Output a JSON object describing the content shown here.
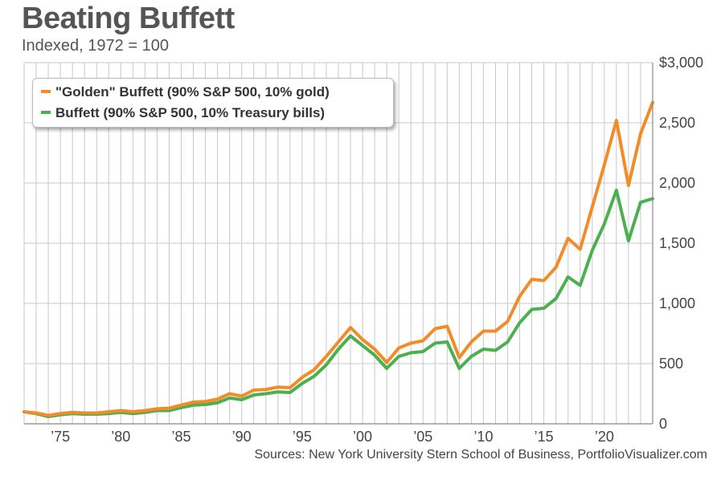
{
  "title": "Beating Buffett",
  "subtitle": "Indexed, 1972 = 100",
  "source": "Sources: New York University Stern School of Business, PortfolioVisualizer.com",
  "colors": {
    "golden": "#f28c28",
    "buffett": "#4caf50",
    "grid": "#c8c8c8"
  },
  "chart_data": {
    "type": "line",
    "title": "Beating Buffett",
    "subtitle": "Indexed, 1972 = 100",
    "xlabel": "",
    "ylabel": "",
    "xlim": [
      1972,
      2024
    ],
    "ylim": [
      0,
      3000
    ],
    "grid": true,
    "legend_position": "top-left",
    "x_ticks": [
      1975,
      1980,
      1985,
      1990,
      1995,
      2000,
      2005,
      2010,
      2015,
      2020
    ],
    "x_tick_labels": [
      "’75",
      "’80",
      "’85",
      "’90",
      "’95",
      "’00",
      "’05",
      "’10",
      "’15",
      "’20"
    ],
    "y_ticks": [
      0,
      500,
      1000,
      1500,
      2000,
      2500,
      3000
    ],
    "y_tick_labels": [
      "0",
      "500",
      "1,000",
      "1,500",
      "2,000",
      "2,500",
      "$3,000"
    ],
    "x": [
      1972,
      1973,
      1974,
      1975,
      1976,
      1977,
      1978,
      1979,
      1980,
      1981,
      1982,
      1983,
      1984,
      1985,
      1986,
      1987,
      1988,
      1989,
      1990,
      1991,
      1992,
      1993,
      1994,
      1995,
      1996,
      1997,
      1998,
      1999,
      2000,
      2001,
      2002,
      2003,
      2004,
      2005,
      2006,
      2007,
      2008,
      2009,
      2010,
      2011,
      2012,
      2013,
      2014,
      2015,
      2016,
      2017,
      2018,
      2019,
      2020,
      2021,
      2022,
      2023,
      2024
    ],
    "series": [
      {
        "name": "\"Golden\" Buffett (90% S&P 500, 10% gold)",
        "color": "#f28c28",
        "values": [
          100,
          90,
          70,
          85,
          95,
          90,
          90,
          100,
          110,
          100,
          110,
          125,
          130,
          155,
          180,
          185,
          205,
          250,
          230,
          280,
          285,
          305,
          300,
          385,
          450,
          560,
          680,
          800,
          700,
          620,
          510,
          630,
          670,
          690,
          790,
          810,
          550,
          680,
          770,
          770,
          850,
          1060,
          1200,
          1190,
          1300,
          1540,
          1450,
          1800,
          2150,
          2520,
          1980,
          2410,
          2670
        ]
      },
      {
        "name": "Buffett (90% S&P 500, 10% Treasury bills)",
        "color": "#4caf50",
        "values": [
          100,
          85,
          60,
          75,
          85,
          80,
          80,
          85,
          95,
          85,
          95,
          110,
          110,
          135,
          155,
          160,
          175,
          215,
          200,
          240,
          250,
          265,
          260,
          335,
          395,
          490,
          620,
          730,
          650,
          570,
          460,
          560,
          590,
          600,
          670,
          680,
          460,
          560,
          620,
          610,
          680,
          840,
          950,
          960,
          1040,
          1220,
          1150,
          1440,
          1660,
          1940,
          1520,
          1840,
          1870
        ]
      }
    ]
  }
}
